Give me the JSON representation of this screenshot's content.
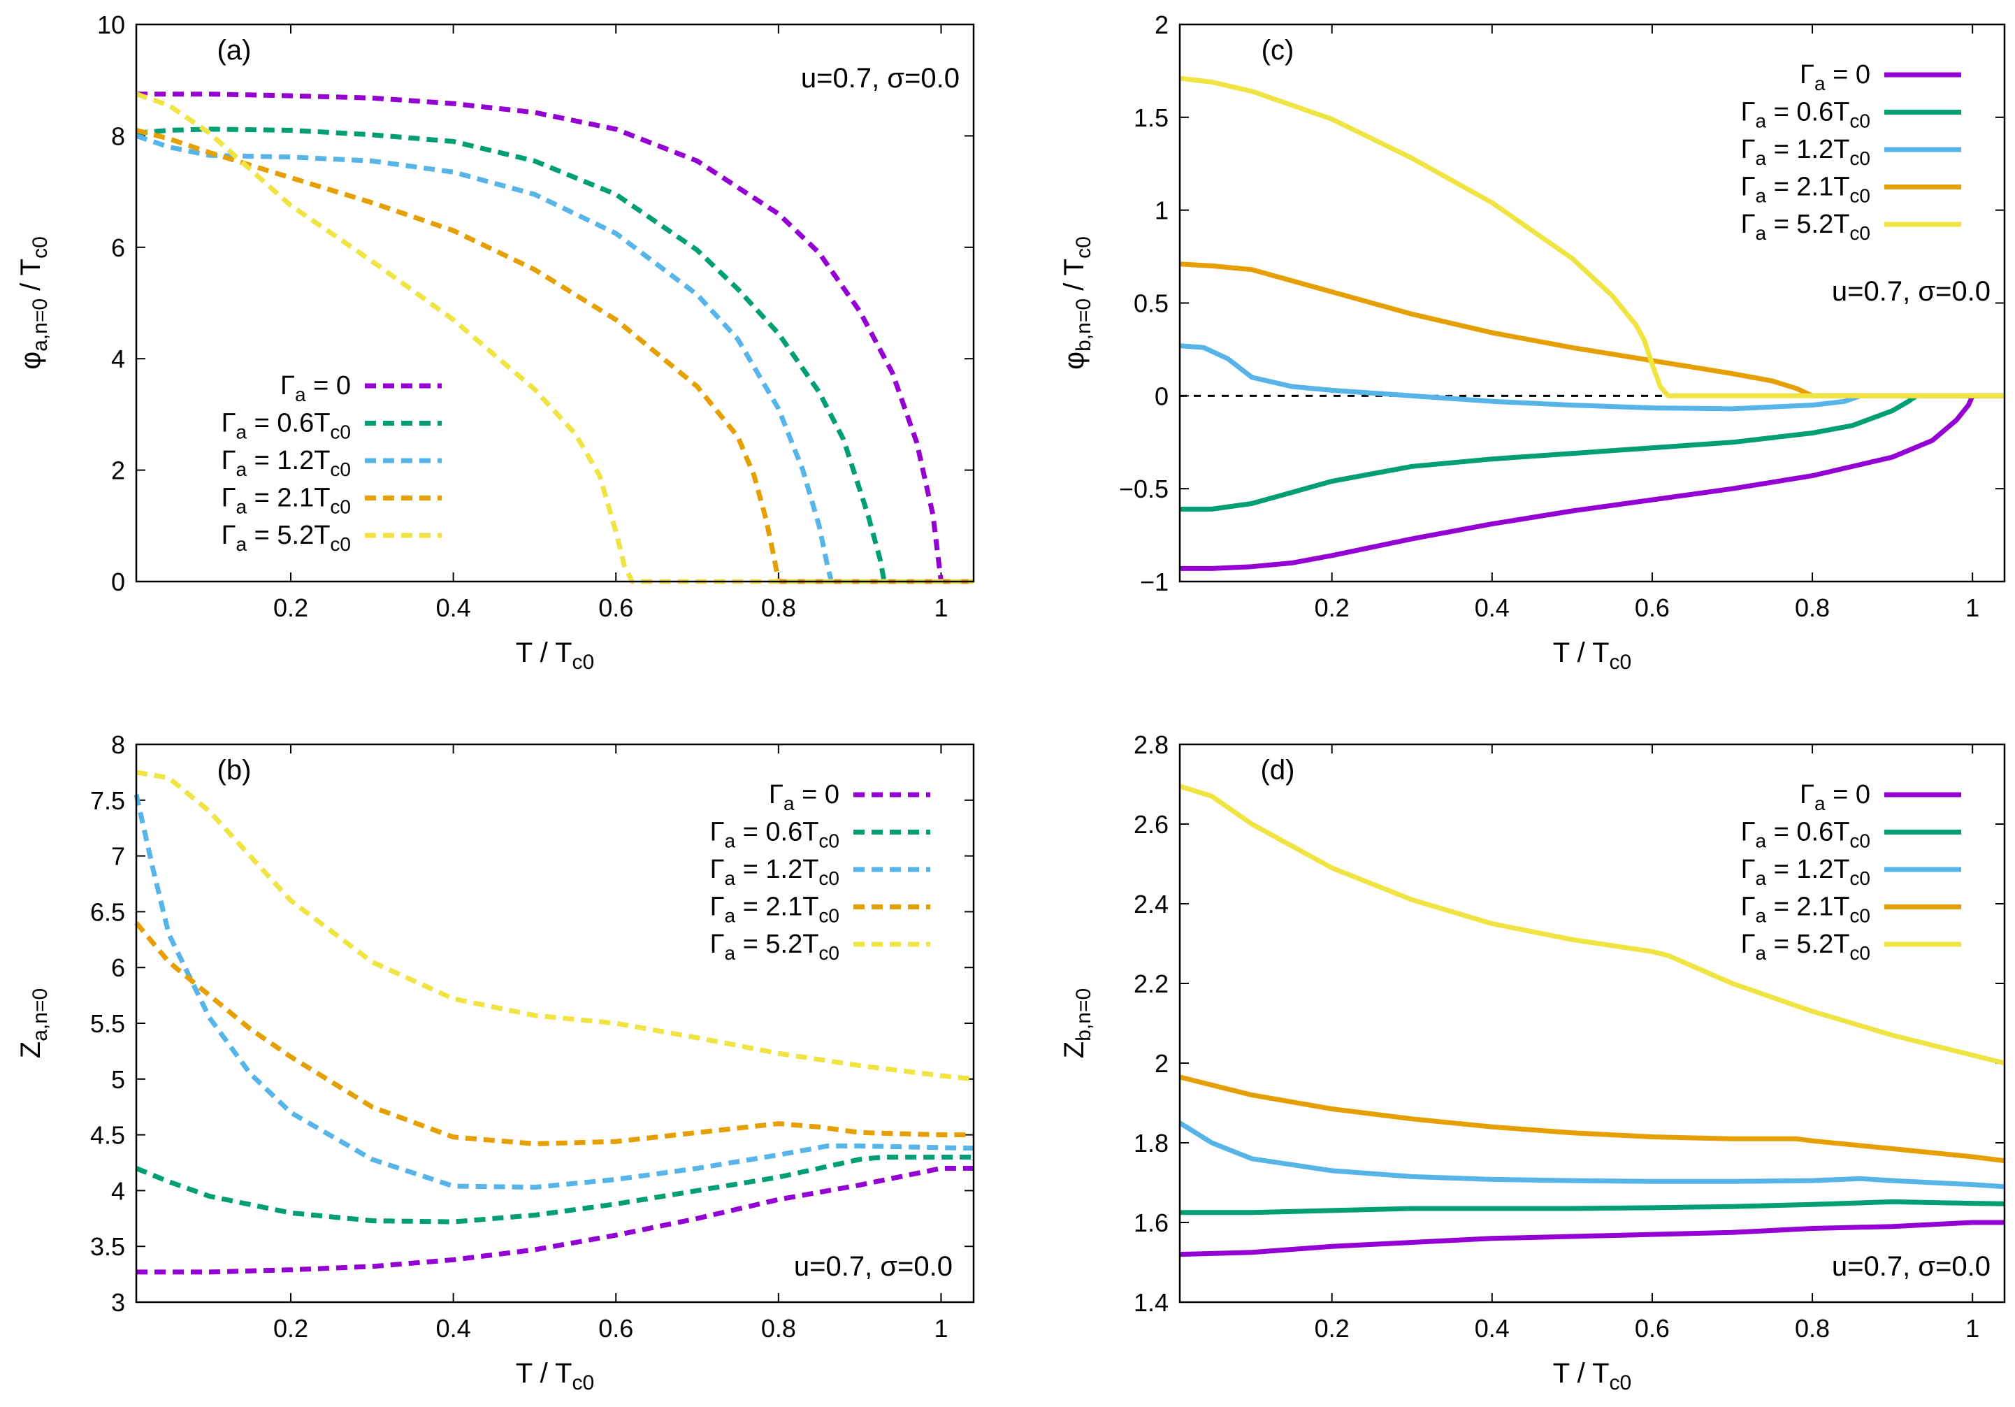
{
  "chart_data": [
    {
      "id": "a",
      "type": "line",
      "panel_label": "(a)",
      "annotation": "u=0.7, σ=0.0",
      "xlabel": {
        "main": "T / T",
        "sub": "c0"
      },
      "ylabel": {
        "main": "φ",
        "sub": "a,n=0",
        "tail": " / T",
        "tail_sub": "c0"
      },
      "xlim": [
        0.01,
        1.04
      ],
      "ylim": [
        0,
        10
      ],
      "xticks": [
        0.2,
        0.4,
        0.6,
        0.8,
        1
      ],
      "yticks": [
        0,
        2,
        4,
        6,
        8,
        10
      ],
      "dashed": true,
      "legend_position": "bottom-left",
      "zero_line": false,
      "series": [
        {
          "name": "Γa = 0",
          "label_main": "Γ",
          "label_sub": "a",
          "label_rest": " = 0",
          "label_sub2": "",
          "color": "#9400d3",
          "x": [
            0.01,
            0.1,
            0.2,
            0.3,
            0.4,
            0.5,
            0.6,
            0.7,
            0.8,
            0.85,
            0.9,
            0.94,
            0.97,
            0.99,
            1.0,
            1.005,
            1.04
          ],
          "y": [
            8.75,
            8.75,
            8.72,
            8.68,
            8.58,
            8.42,
            8.12,
            7.55,
            6.6,
            5.9,
            4.85,
            3.75,
            2.5,
            1.2,
            0.0,
            0.0,
            0.0
          ]
        },
        {
          "name": "Γa = 0.6Tc0",
          "label_main": "Γ",
          "label_sub": "a",
          "label_rest": " = 0.6T",
          "label_sub2": "c0",
          "color": "#009e73",
          "x": [
            0.01,
            0.05,
            0.1,
            0.2,
            0.3,
            0.4,
            0.5,
            0.6,
            0.7,
            0.75,
            0.8,
            0.85,
            0.88,
            0.91,
            0.925,
            0.93,
            1.04
          ],
          "y": [
            8.05,
            8.1,
            8.12,
            8.1,
            8.02,
            7.9,
            7.55,
            6.95,
            5.95,
            5.25,
            4.45,
            3.4,
            2.55,
            1.2,
            0.4,
            0.0,
            0.0
          ]
        },
        {
          "name": "Γa = 1.2Tc0",
          "label_main": "Γ",
          "label_sub": "a",
          "label_rest": " = 1.2T",
          "label_sub2": "c0",
          "color": "#56b4e9",
          "x": [
            0.01,
            0.05,
            0.1,
            0.2,
            0.3,
            0.4,
            0.5,
            0.6,
            0.7,
            0.75,
            0.8,
            0.83,
            0.85,
            0.86,
            0.865,
            1.04
          ],
          "y": [
            8.0,
            7.8,
            7.65,
            7.62,
            7.55,
            7.35,
            6.95,
            6.25,
            5.15,
            4.35,
            3.1,
            2.0,
            1.0,
            0.3,
            0.0,
            0.0
          ]
        },
        {
          "name": "Γa = 2.1Tc0",
          "label_main": "Γ",
          "label_sub": "a",
          "label_rest": " = 2.1T",
          "label_sub2": "c0",
          "color": "#e69f00",
          "x": [
            0.01,
            0.05,
            0.1,
            0.2,
            0.3,
            0.4,
            0.5,
            0.6,
            0.7,
            0.75,
            0.77,
            0.785,
            0.795,
            0.8,
            1.04
          ],
          "y": [
            8.1,
            7.95,
            7.7,
            7.25,
            6.8,
            6.3,
            5.6,
            4.7,
            3.5,
            2.6,
            1.9,
            1.1,
            0.4,
            0.0,
            0.0
          ]
        },
        {
          "name": "Γa = 5.2Tc0",
          "label_main": "Γ",
          "label_sub": "a",
          "label_rest": " = 5.2T",
          "label_sub2": "c0",
          "color": "#f0e442",
          "x": [
            0.01,
            0.05,
            0.1,
            0.15,
            0.2,
            0.3,
            0.4,
            0.5,
            0.55,
            0.58,
            0.6,
            0.61,
            0.62,
            1.04
          ],
          "y": [
            8.75,
            8.55,
            8.05,
            7.4,
            6.75,
            5.75,
            4.7,
            3.45,
            2.65,
            1.9,
            0.9,
            0.3,
            0.0,
            0.0
          ]
        }
      ]
    },
    {
      "id": "b",
      "type": "line",
      "panel_label": "(b)",
      "annotation": "u=0.7, σ=0.0",
      "xlabel": {
        "main": "T / T",
        "sub": "c0"
      },
      "ylabel": {
        "main": "Z",
        "sub": "a,n=0",
        "tail": "",
        "tail_sub": ""
      },
      "xlim": [
        0.01,
        1.04
      ],
      "ylim": [
        3,
        8
      ],
      "xticks": [
        0.2,
        0.4,
        0.6,
        0.8,
        1
      ],
      "yticks": [
        3,
        3.5,
        4,
        4.5,
        5,
        5.5,
        6,
        6.5,
        7,
        7.5,
        8
      ],
      "dashed": true,
      "legend_position": "top-right",
      "zero_line": false,
      "series": [
        {
          "name": "Γa = 0",
          "label_main": "Γ",
          "label_sub": "a",
          "label_rest": " = 0",
          "label_sub2": "",
          "color": "#9400d3",
          "x": [
            0.01,
            0.1,
            0.2,
            0.3,
            0.4,
            0.5,
            0.6,
            0.7,
            0.8,
            0.9,
            1.0,
            1.04
          ],
          "y": [
            3.27,
            3.27,
            3.29,
            3.32,
            3.38,
            3.47,
            3.6,
            3.75,
            3.92,
            4.05,
            4.2,
            4.2
          ]
        },
        {
          "name": "Γa = 0.6Tc0",
          "label_main": "Γ",
          "label_sub": "a",
          "label_rest": " = 0.6T",
          "label_sub2": "c0",
          "color": "#009e73",
          "x": [
            0.01,
            0.05,
            0.1,
            0.2,
            0.3,
            0.4,
            0.5,
            0.6,
            0.7,
            0.8,
            0.9,
            0.93,
            1.04
          ],
          "y": [
            4.2,
            4.08,
            3.95,
            3.8,
            3.73,
            3.72,
            3.78,
            3.88,
            4.0,
            4.12,
            4.28,
            4.3,
            4.3
          ]
        },
        {
          "name": "Γa = 1.2Tc0",
          "label_main": "Γ",
          "label_sub": "a",
          "label_rest": " = 1.2T",
          "label_sub2": "c0",
          "color": "#56b4e9",
          "x": [
            0.01,
            0.03,
            0.05,
            0.08,
            0.1,
            0.15,
            0.2,
            0.3,
            0.4,
            0.5,
            0.6,
            0.7,
            0.8,
            0.86,
            0.9,
            1.04
          ],
          "y": [
            7.55,
            6.9,
            6.3,
            5.85,
            5.55,
            5.05,
            4.7,
            4.28,
            4.04,
            4.03,
            4.1,
            4.2,
            4.32,
            4.4,
            4.4,
            4.38
          ]
        },
        {
          "name": "Γa = 2.1Tc0",
          "label_main": "Γ",
          "label_sub": "a",
          "label_rest": " = 2.1T",
          "label_sub2": "c0",
          "color": "#e69f00",
          "x": [
            0.01,
            0.05,
            0.1,
            0.15,
            0.2,
            0.3,
            0.4,
            0.5,
            0.6,
            0.7,
            0.8,
            0.85,
            0.9,
            1.0,
            1.04
          ],
          "y": [
            6.4,
            6.05,
            5.75,
            5.45,
            5.2,
            4.75,
            4.48,
            4.42,
            4.44,
            4.52,
            4.6,
            4.57,
            4.52,
            4.5,
            4.5
          ]
        },
        {
          "name": "Γa = 5.2Tc0",
          "label_main": "Γ",
          "label_sub": "a",
          "label_rest": " = 5.2T",
          "label_sub2": "c0",
          "color": "#f0e442",
          "x": [
            0.01,
            0.05,
            0.1,
            0.15,
            0.2,
            0.3,
            0.4,
            0.5,
            0.6,
            0.7,
            0.8,
            0.9,
            1.0,
            1.04
          ],
          "y": [
            7.75,
            7.7,
            7.4,
            7.0,
            6.6,
            6.05,
            5.72,
            5.57,
            5.5,
            5.37,
            5.23,
            5.12,
            5.03,
            5.0
          ]
        }
      ]
    },
    {
      "id": "c",
      "type": "line",
      "panel_label": "(c)",
      "annotation": "u=0.7, σ=0.0",
      "xlabel": {
        "main": "T / T",
        "sub": "c0"
      },
      "ylabel": {
        "main": "φ",
        "sub": "b,n=0",
        "tail": " / T",
        "tail_sub": "c0"
      },
      "xlim": [
        0.01,
        1.04
      ],
      "ylim": [
        -1,
        2
      ],
      "xticks": [
        0.2,
        0.4,
        0.6,
        0.8,
        1
      ],
      "yticks": [
        -1,
        -0.5,
        0,
        0.5,
        1,
        1.5,
        2
      ],
      "ytick_labels": [
        "−1",
        "−0.5",
        "0",
        "0.5",
        "1",
        "1.5",
        "2"
      ],
      "dashed": false,
      "legend_position": "top-right",
      "zero_line": true,
      "zero_line_until": 0.86,
      "series": [
        {
          "name": "Γa = 0",
          "label_main": "Γ",
          "label_sub": "a",
          "label_rest": " = 0",
          "label_sub2": "",
          "color": "#9400d3",
          "x": [
            0.01,
            0.05,
            0.1,
            0.15,
            0.2,
            0.3,
            0.4,
            0.5,
            0.6,
            0.7,
            0.8,
            0.9,
            0.95,
            0.98,
            0.995,
            1.0,
            1.04
          ],
          "y": [
            -0.93,
            -0.93,
            -0.92,
            -0.9,
            -0.86,
            -0.77,
            -0.69,
            -0.62,
            -0.56,
            -0.5,
            -0.43,
            -0.33,
            -0.24,
            -0.13,
            -0.05,
            0.0,
            0.0
          ]
        },
        {
          "name": "Γa = 0.6Tc0",
          "label_main": "Γ",
          "label_sub": "a",
          "label_rest": " = 0.6T",
          "label_sub2": "c0",
          "color": "#009e73",
          "x": [
            0.01,
            0.05,
            0.1,
            0.15,
            0.2,
            0.3,
            0.4,
            0.5,
            0.6,
            0.7,
            0.8,
            0.85,
            0.9,
            0.92,
            0.93,
            1.04
          ],
          "y": [
            -0.61,
            -0.61,
            -0.58,
            -0.52,
            -0.46,
            -0.38,
            -0.34,
            -0.31,
            -0.28,
            -0.25,
            -0.2,
            -0.16,
            -0.08,
            -0.03,
            0.0,
            0.0
          ]
        },
        {
          "name": "Γa = 1.2Tc0",
          "label_main": "Γ",
          "label_sub": "a",
          "label_rest": " = 1.2T",
          "label_sub2": "c0",
          "color": "#56b4e9",
          "x": [
            0.01,
            0.04,
            0.07,
            0.1,
            0.15,
            0.2,
            0.3,
            0.4,
            0.5,
            0.6,
            0.7,
            0.8,
            0.84,
            0.86,
            1.04
          ],
          "y": [
            0.27,
            0.26,
            0.2,
            0.1,
            0.05,
            0.03,
            0.0,
            -0.03,
            -0.05,
            -0.065,
            -0.07,
            -0.05,
            -0.03,
            0.0,
            0.0
          ]
        },
        {
          "name": "Γa = 2.1Tc0",
          "label_main": "Γ",
          "label_sub": "a",
          "label_rest": " = 2.1T",
          "label_sub2": "c0",
          "color": "#e69f00",
          "x": [
            0.01,
            0.05,
            0.1,
            0.2,
            0.3,
            0.4,
            0.5,
            0.6,
            0.7,
            0.75,
            0.78,
            0.8,
            1.04
          ],
          "y": [
            0.71,
            0.7,
            0.68,
            0.56,
            0.44,
            0.34,
            0.26,
            0.19,
            0.12,
            0.08,
            0.04,
            0.0,
            0.0
          ]
        },
        {
          "name": "Γa = 5.2Tc0",
          "label_main": "Γ",
          "label_sub": "a",
          "label_rest": " = 5.2T",
          "label_sub2": "c0",
          "color": "#f0e442",
          "x": [
            0.01,
            0.05,
            0.1,
            0.2,
            0.3,
            0.4,
            0.5,
            0.55,
            0.58,
            0.59,
            0.6,
            0.61,
            0.62,
            1.04
          ],
          "y": [
            1.71,
            1.69,
            1.64,
            1.49,
            1.28,
            1.04,
            0.74,
            0.54,
            0.38,
            0.3,
            0.17,
            0.05,
            0.0,
            0.0
          ]
        }
      ]
    },
    {
      "id": "d",
      "type": "line",
      "panel_label": "(d)",
      "annotation": "u=0.7, σ=0.0",
      "xlabel": {
        "main": "T / T",
        "sub": "c0"
      },
      "ylabel": {
        "main": "Z",
        "sub": "b,n=0",
        "tail": "",
        "tail_sub": ""
      },
      "xlim": [
        0.01,
        1.04
      ],
      "ylim": [
        1.4,
        2.8
      ],
      "xticks": [
        0.2,
        0.4,
        0.6,
        0.8,
        1
      ],
      "yticks": [
        1.4,
        1.6,
        1.8,
        2,
        2.2,
        2.4,
        2.6,
        2.8
      ],
      "dashed": false,
      "legend_position": "top-right",
      "zero_line": false,
      "series": [
        {
          "name": "Γa = 0",
          "label_main": "Γ",
          "label_sub": "a",
          "label_rest": " = 0",
          "label_sub2": "",
          "color": "#9400d3",
          "x": [
            0.01,
            0.1,
            0.2,
            0.3,
            0.4,
            0.5,
            0.6,
            0.7,
            0.8,
            0.9,
            1.0,
            1.04
          ],
          "y": [
            1.52,
            1.525,
            1.54,
            1.55,
            1.56,
            1.565,
            1.57,
            1.575,
            1.585,
            1.59,
            1.6,
            1.6
          ]
        },
        {
          "name": "Γa = 0.6Tc0",
          "label_main": "Γ",
          "label_sub": "a",
          "label_rest": " = 0.6T",
          "label_sub2": "c0",
          "color": "#009e73",
          "x": [
            0.01,
            0.1,
            0.2,
            0.3,
            0.4,
            0.5,
            0.6,
            0.7,
            0.8,
            0.9,
            1.0,
            1.04
          ],
          "y": [
            1.625,
            1.625,
            1.63,
            1.635,
            1.635,
            1.635,
            1.637,
            1.64,
            1.645,
            1.652,
            1.648,
            1.647
          ]
        },
        {
          "name": "Γa = 1.2Tc0",
          "label_main": "Γ",
          "label_sub": "a",
          "label_rest": " = 1.2T",
          "label_sub2": "c0",
          "color": "#56b4e9",
          "x": [
            0.01,
            0.05,
            0.1,
            0.15,
            0.2,
            0.3,
            0.4,
            0.5,
            0.6,
            0.7,
            0.8,
            0.86,
            0.9,
            1.0,
            1.04
          ],
          "y": [
            1.85,
            1.8,
            1.76,
            1.745,
            1.73,
            1.715,
            1.708,
            1.705,
            1.703,
            1.703,
            1.705,
            1.71,
            1.705,
            1.695,
            1.69
          ]
        },
        {
          "name": "Γa = 2.1Tc0",
          "label_main": "Γ",
          "label_sub": "a",
          "label_rest": " = 2.1T",
          "label_sub2": "c0",
          "color": "#e69f00",
          "x": [
            0.01,
            0.1,
            0.2,
            0.3,
            0.4,
            0.5,
            0.6,
            0.7,
            0.78,
            0.8,
            0.9,
            1.0,
            1.04
          ],
          "y": [
            1.965,
            1.92,
            1.885,
            1.86,
            1.84,
            1.825,
            1.815,
            1.81,
            1.81,
            1.805,
            1.785,
            1.765,
            1.755
          ]
        },
        {
          "name": "Γa = 5.2Tc0",
          "label_main": "Γ",
          "label_sub": "a",
          "label_rest": " = 5.2T",
          "label_sub2": "c0",
          "color": "#f0e442",
          "x": [
            0.01,
            0.05,
            0.1,
            0.2,
            0.3,
            0.4,
            0.5,
            0.6,
            0.62,
            0.7,
            0.8,
            0.9,
            1.0,
            1.04
          ],
          "y": [
            2.695,
            2.67,
            2.6,
            2.49,
            2.41,
            2.35,
            2.31,
            2.28,
            2.27,
            2.2,
            2.13,
            2.07,
            2.02,
            2.0
          ]
        }
      ]
    }
  ]
}
